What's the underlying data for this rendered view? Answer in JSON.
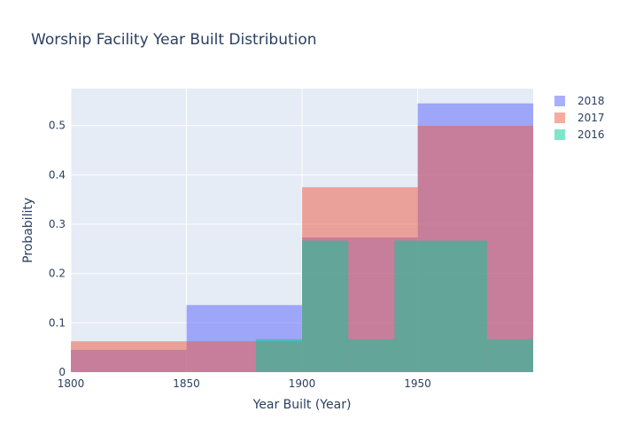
{
  "chart_data": {
    "type": "histogram",
    "title": "Worship Facility Year Built Distribution",
    "xlabel": "Year Built (Year)",
    "ylabel": "Probability",
    "xlim": [
      1800,
      2000
    ],
    "ylim": [
      0,
      0.575
    ],
    "x_ticks": [
      {
        "value": 1800,
        "label": "1800"
      },
      {
        "value": 1850,
        "label": "1850"
      },
      {
        "value": 1900,
        "label": "1900"
      },
      {
        "value": 1950,
        "label": "1950"
      }
    ],
    "y_ticks": [
      {
        "value": 0,
        "label": "0"
      },
      {
        "value": 0.1,
        "label": "0.1"
      },
      {
        "value": 0.2,
        "label": "0.2"
      },
      {
        "value": 0.3,
        "label": "0.3"
      },
      {
        "value": 0.4,
        "label": "0.4"
      },
      {
        "value": 0.5,
        "label": "0.5"
      }
    ],
    "grid": true,
    "legend_position": "top-right",
    "plot_background": "#e5ecf6",
    "series": [
      {
        "name": "2018",
        "color": "#636efa",
        "opacity": 0.55,
        "bins": [
          {
            "x0": 1800,
            "x1": 1850,
            "value": 0.045
          },
          {
            "x0": 1850,
            "x1": 1900,
            "value": 0.136
          },
          {
            "x0": 1900,
            "x1": 1950,
            "value": 0.273
          },
          {
            "x0": 1950,
            "x1": 2000,
            "value": 0.545
          }
        ]
      },
      {
        "name": "2017",
        "color": "#ef553b",
        "opacity": 0.5,
        "bins": [
          {
            "x0": 1800,
            "x1": 1850,
            "value": 0.0625
          },
          {
            "x0": 1850,
            "x1": 1900,
            "value": 0.0625
          },
          {
            "x0": 1900,
            "x1": 1950,
            "value": 0.375
          },
          {
            "x0": 1950,
            "x1": 2000,
            "value": 0.5
          }
        ]
      },
      {
        "name": "2016",
        "color": "#00cc96",
        "opacity": 0.5,
        "bins": [
          {
            "x0": 1880,
            "x1": 1900,
            "value": 0.0667
          },
          {
            "x0": 1900,
            "x1": 1920,
            "value": 0.2667
          },
          {
            "x0": 1920,
            "x1": 1940,
            "value": 0.0667
          },
          {
            "x0": 1940,
            "x1": 1980,
            "value": 0.2667
          },
          {
            "x0": 1980,
            "x1": 2000,
            "value": 0.0667
          }
        ]
      }
    ]
  }
}
